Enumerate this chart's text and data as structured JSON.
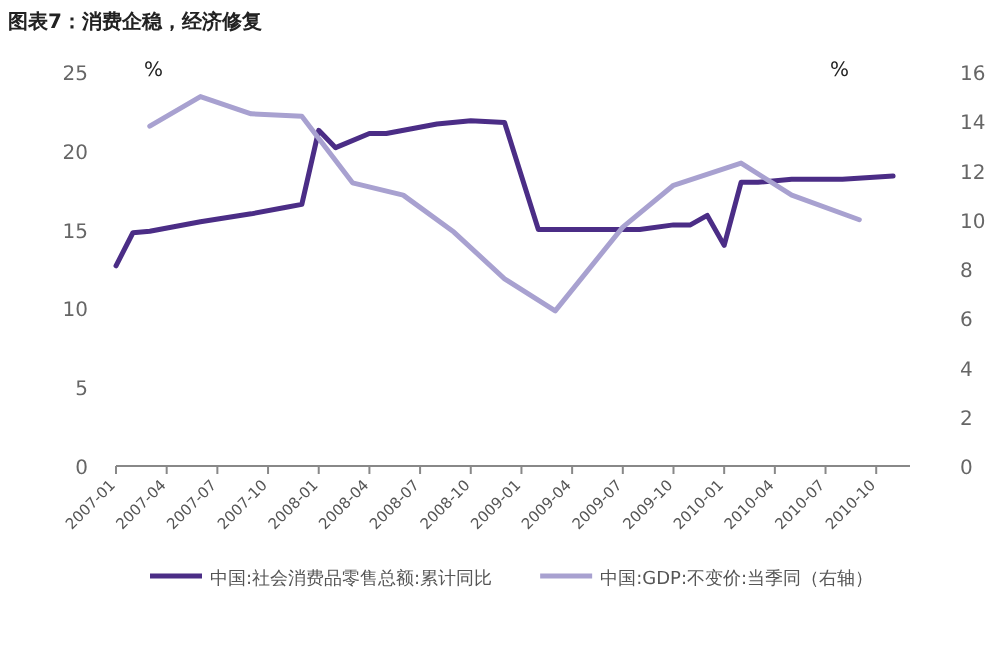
{
  "chart_data": {
    "type": "line",
    "title": "图表7：消费企稳，经济修复",
    "ylabel": "%",
    "y2label": "%",
    "x": [
      "2007-01",
      "2007-02",
      "2007-03",
      "2007-06",
      "2007-09",
      "2007-11",
      "2007-12",
      "2008-01",
      "2008-02",
      "2008-04",
      "2008-05",
      "2008-08",
      "2008-10",
      "2008-12",
      "2009-02",
      "2009-08",
      "2009-10",
      "2009-11",
      "2009-12",
      "2010-01",
      "2010-02",
      "2010-03",
      "2010-05",
      "2010-08",
      "2010-11"
    ],
    "series": [
      {
        "name": "中国:社会消费品零售总额:累计同比",
        "color": "#4b2d86",
        "values": [
          12.7,
          14.8,
          14.9,
          15.5,
          16.0,
          16.4,
          16.6,
          21.3,
          20.2,
          21.1,
          21.1,
          21.7,
          21.9,
          21.8,
          15.0,
          15.0,
          15.3,
          15.3,
          15.9,
          14.0,
          18.0,
          18.0,
          18.2,
          18.2,
          18.4
        ]
      },
      {
        "name": "中国:GDP:不变价:当季同（右轴）",
        "color": "#a8a1d0",
        "axis": "y2",
        "x": [
          "2007-03",
          "2007-06",
          "2007-09",
          "2007-12",
          "2008-03",
          "2008-06",
          "2008-09",
          "2008-12",
          "2009-03",
          "2009-07",
          "2009-10",
          "2010-02",
          "2010-05",
          "2010-09"
        ],
        "values": [
          13.8,
          15.0,
          14.3,
          14.2,
          11.5,
          11.0,
          9.5,
          7.6,
          6.3,
          9.7,
          11.4,
          12.3,
          11.0,
          10.0
        ]
      }
    ],
    "xlim": [
      "2007-01",
      "2010-12"
    ],
    "xticks": [
      "2007-01",
      "2007-04",
      "2007-07",
      "2007-10",
      "2008-01",
      "2008-04",
      "2008-07",
      "2008-10",
      "2009-01",
      "2009-04",
      "2009-07",
      "2009-10",
      "2010-01",
      "2010-04",
      "2010-07",
      "2010-10"
    ],
    "ylim": [
      0,
      25
    ],
    "yticks": [
      0,
      5,
      10,
      15,
      20,
      25
    ],
    "y2lim": [
      0,
      16
    ],
    "y2ticks": [
      0,
      2,
      4,
      6,
      8,
      10,
      12,
      14,
      16
    ],
    "legend": "bottom"
  }
}
